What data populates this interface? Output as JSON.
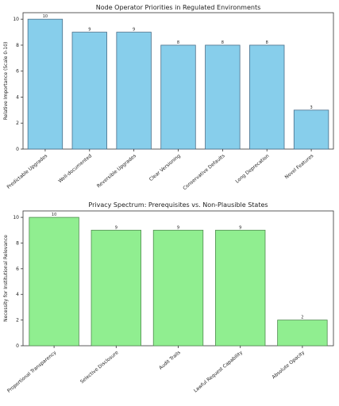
{
  "chart_data": [
    {
      "type": "bar",
      "title": "Node Operator Priorities in Regulated Environments",
      "xlabel": "",
      "ylabel": "Relative Importance (Scale 0-10)",
      "categories": [
        "Predictable Upgrades",
        "Well-documented",
        "Reversible Upgrades",
        "Clear Versioning",
        "Conservative Defaults",
        "Long Deprecation",
        "Novel Features"
      ],
      "values": [
        10,
        9,
        9,
        8,
        8,
        8,
        3
      ],
      "ylim": [
        0,
        10.5
      ],
      "yticks": [
        0,
        2,
        4,
        6,
        8,
        10
      ],
      "color": "#87ceeb",
      "grid": false
    },
    {
      "type": "bar",
      "title": "Privacy Spectrum: Prerequisites vs. Non-Plausible States",
      "xlabel": "",
      "ylabel": "Necessity for Institutional Relevance",
      "categories": [
        "Proportional Transparency",
        "Selective Disclosure",
        "Audit Trails",
        "Lawful Request Capability",
        "Absolute Opacity"
      ],
      "values": [
        10,
        9,
        9,
        9,
        2
      ],
      "ylim": [
        0,
        10.5
      ],
      "yticks": [
        0,
        2,
        4,
        6,
        8,
        10
      ],
      "color": "#90ee90",
      "grid": false
    }
  ]
}
